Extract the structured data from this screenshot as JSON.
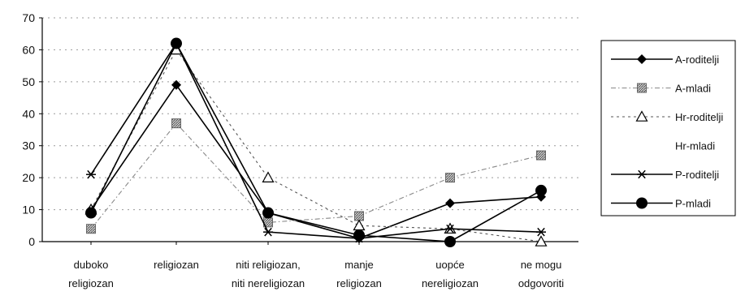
{
  "chart_data": {
    "type": "line",
    "categories": [
      [
        "duboko",
        "religiozan"
      ],
      [
        "religiozan"
      ],
      [
        "niti religiozan,",
        "niti nereligiozan"
      ],
      [
        "manje",
        "religiozan"
      ],
      [
        "uopće",
        "nereligiozan"
      ],
      [
        "ne mogu",
        "odgovoriti"
      ]
    ],
    "ylim": [
      0,
      70
    ],
    "yticks": [
      0,
      10,
      20,
      30,
      40,
      50,
      60,
      70
    ],
    "grid": "horizontal dotted",
    "legend_position": "right",
    "series": [
      {
        "name": "A-roditelji",
        "marker": "diamond",
        "line": "solid",
        "color": "#000000",
        "values": [
          10,
          49,
          9,
          1,
          12,
          14
        ]
      },
      {
        "name": "A-mladi",
        "marker": "hatched-square",
        "line": "dash-dot",
        "color": "#888888",
        "values": [
          4,
          37,
          6,
          8,
          20,
          27
        ]
      },
      {
        "name": "Hr-roditelji",
        "marker": "open-triangle",
        "line": "dotted",
        "color": "#555555",
        "values": [
          10,
          60,
          20,
          5,
          4,
          0
        ]
      },
      {
        "name": "Hr-mladi",
        "marker": "none",
        "line": "none",
        "color": "#000000",
        "values": [
          null,
          null,
          null,
          null,
          null,
          null
        ]
      },
      {
        "name": "P-roditelji",
        "marker": "asterisk",
        "line": "solid",
        "color": "#000000",
        "values": [
          21,
          62,
          3,
          1,
          4,
          3
        ]
      },
      {
        "name": "P-mladi",
        "marker": "filled-circle",
        "line": "solid",
        "color": "#000000",
        "values": [
          9,
          62,
          9,
          2,
          0,
          16
        ]
      }
    ]
  }
}
